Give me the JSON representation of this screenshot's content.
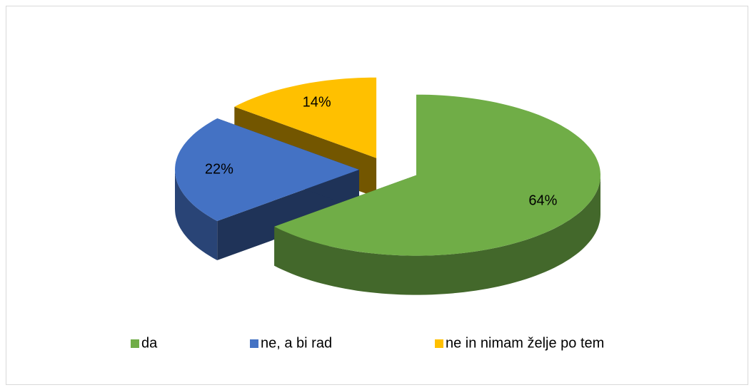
{
  "chart_data": {
    "type": "pie",
    "categories": [
      "da",
      "ne, a bi rad",
      "ne in nimam želje po tem"
    ],
    "values": [
      64,
      22,
      14
    ],
    "value_labels": [
      "64%",
      "22%",
      "14%"
    ],
    "colors": [
      "#70ad47",
      "#4472c4",
      "#ffc000"
    ],
    "legend": "bottom"
  }
}
